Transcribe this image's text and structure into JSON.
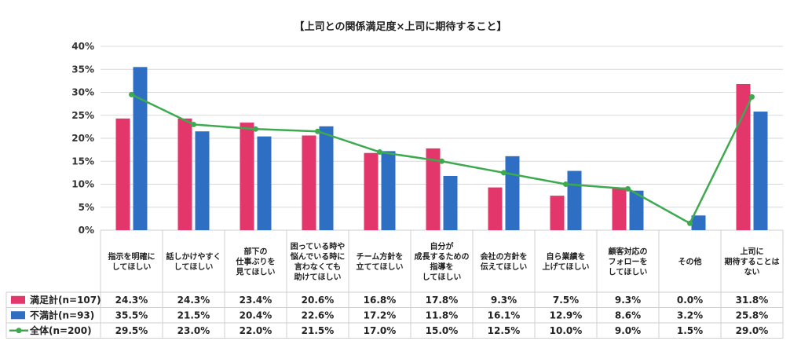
{
  "chart_data": {
    "type": "bar",
    "title": "【上司との関係満足度×上司に期待すること】",
    "ylim": [
      0,
      40
    ],
    "yticks": [
      "0%",
      "5%",
      "10%",
      "15%",
      "20%",
      "25%",
      "30%",
      "35%",
      "40%"
    ],
    "grid": true,
    "categories": [
      [
        "指示を明確に",
        "してほしい"
      ],
      [
        "話しかけやすく",
        "してほしい"
      ],
      [
        "部下の",
        "仕事ぶりを",
        "見てほしい"
      ],
      [
        "困っている時や",
        "悩んでいる時に",
        "言わなくても",
        "助けてほしい"
      ],
      [
        "チーム方針を",
        "立ててほしい"
      ],
      [
        "自分が",
        "成長するための",
        "指導を",
        "してほしい"
      ],
      [
        "会社の方針を",
        "伝えてほしい"
      ],
      [
        "自ら業績を",
        "上げてほしい"
      ],
      [
        "顧客対応の",
        "フォローを",
        "してほしい"
      ],
      [
        "その他"
      ],
      [
        "上司に",
        "期待することは",
        "ない"
      ]
    ],
    "series": [
      {
        "name": "満足計(n=107)",
        "type": "bar",
        "color": "#e3366b",
        "values": [
          24.3,
          24.3,
          23.4,
          20.6,
          16.8,
          17.8,
          9.3,
          7.5,
          9.3,
          0.0,
          31.8
        ],
        "labels": [
          "24.3%",
          "24.3%",
          "23.4%",
          "20.6%",
          "16.8%",
          "17.8%",
          "9.3%",
          "7.5%",
          "9.3%",
          "0.0%",
          "31.8%"
        ]
      },
      {
        "name": "不満計(n=93)",
        "type": "bar",
        "color": "#2e6fc4",
        "values": [
          35.5,
          21.5,
          20.4,
          22.6,
          17.2,
          11.8,
          16.1,
          12.9,
          8.6,
          3.2,
          25.8
        ],
        "labels": [
          "35.5%",
          "21.5%",
          "20.4%",
          "22.6%",
          "17.2%",
          "11.8%",
          "16.1%",
          "12.9%",
          "8.6%",
          "3.2%",
          "25.8%"
        ]
      },
      {
        "name": "全体(n=200)",
        "type": "line",
        "color": "#3daa4f",
        "values": [
          29.5,
          23.0,
          22.0,
          21.5,
          17.0,
          15.0,
          12.5,
          10.0,
          9.0,
          1.5,
          29.0
        ],
        "labels": [
          "29.5%",
          "23.0%",
          "22.0%",
          "21.5%",
          "17.0%",
          "15.0%",
          "12.5%",
          "10.0%",
          "9.0%",
          "1.5%",
          "29.0%"
        ]
      }
    ]
  }
}
